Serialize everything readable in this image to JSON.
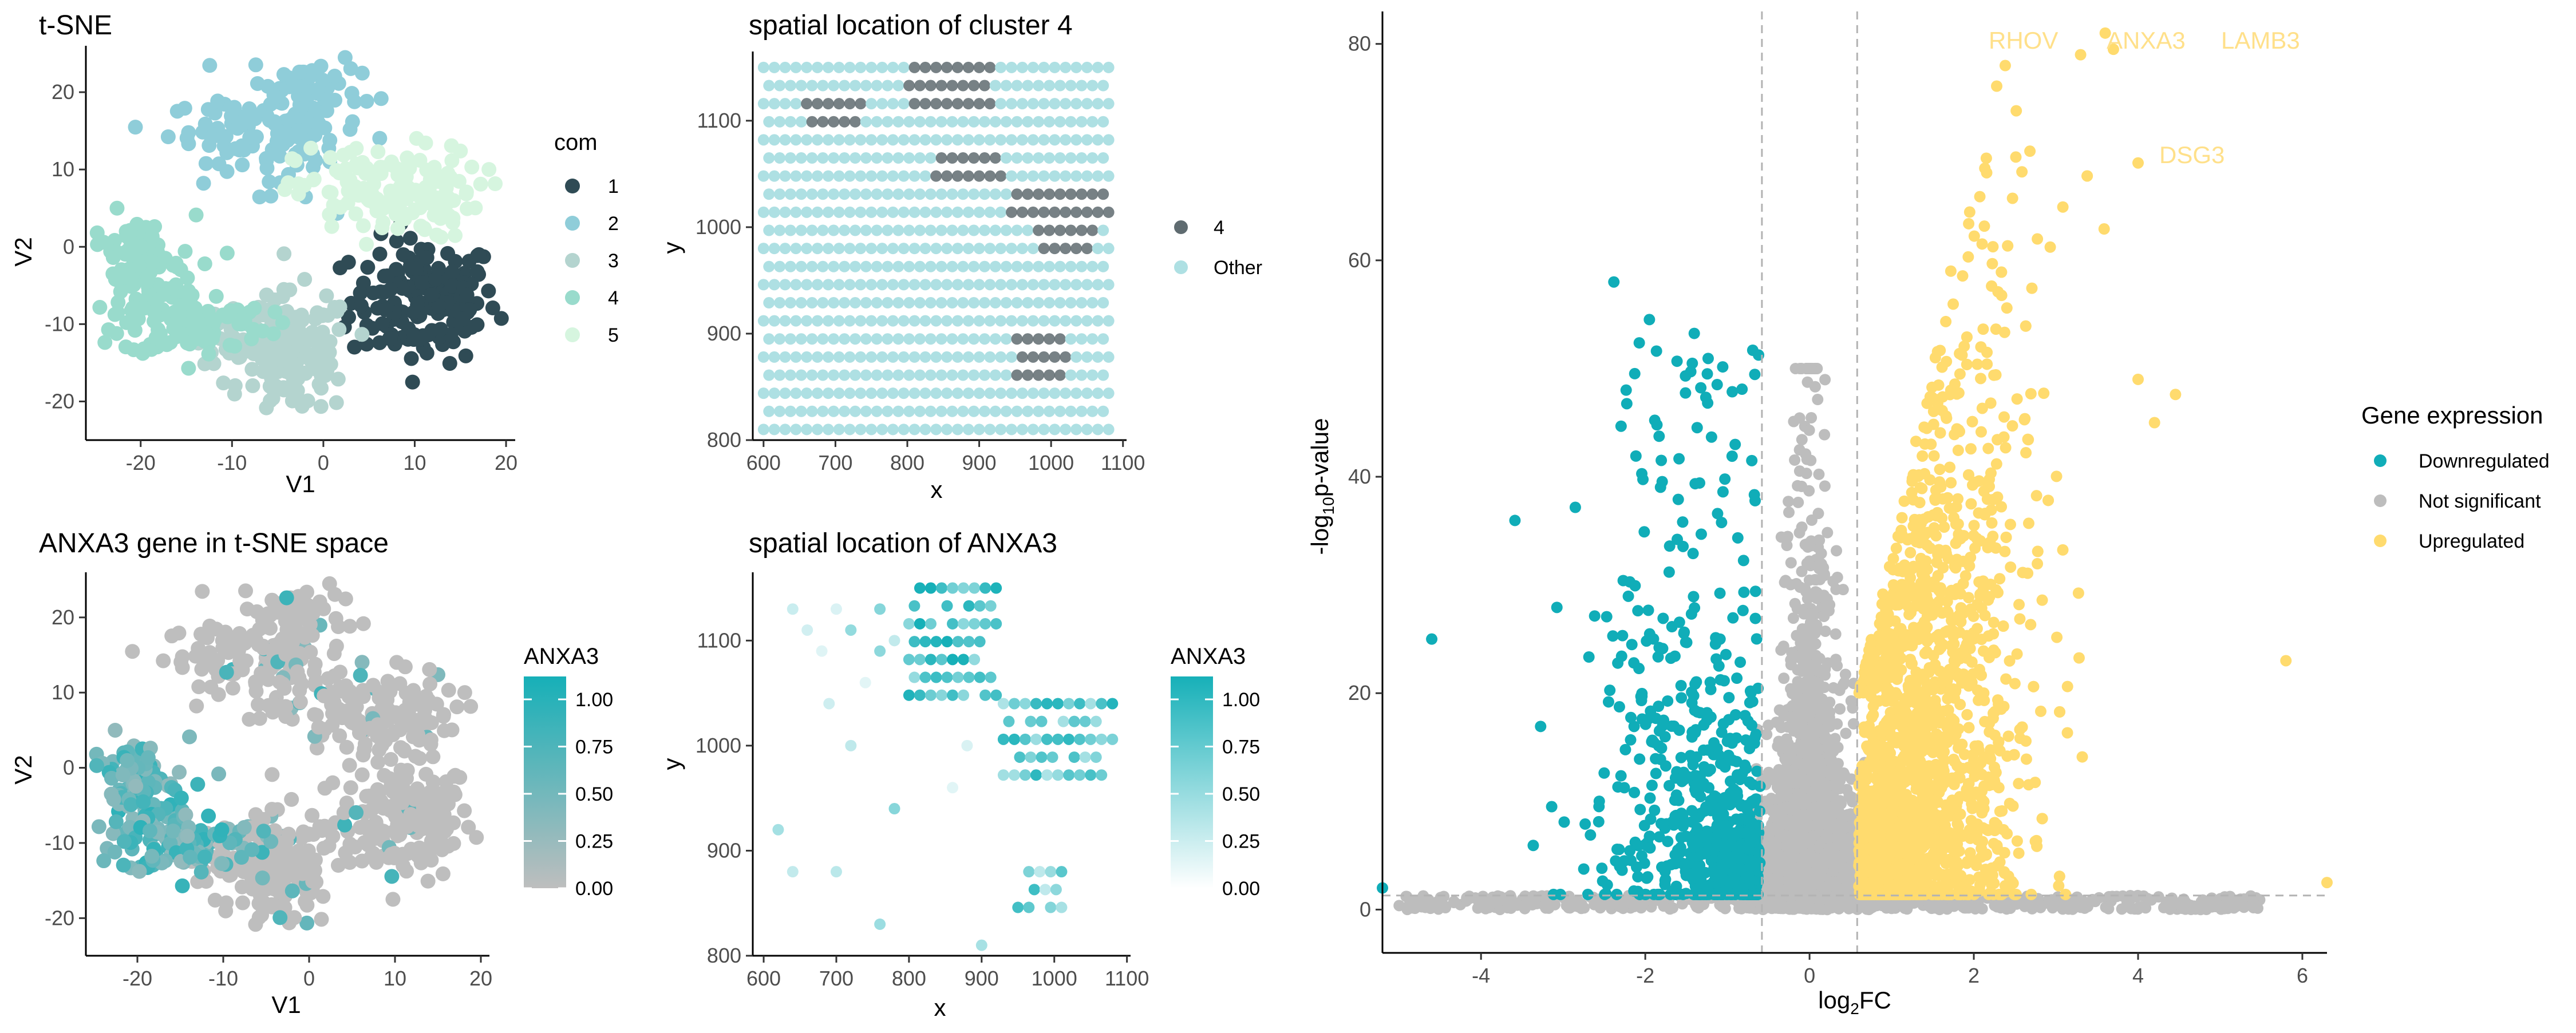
{
  "colors": {
    "com1": "#2f4b55",
    "com2": "#8fcdd9",
    "com3": "#b4d4cf",
    "com4": "#99dbcc",
    "com5": "#d6f5df",
    "cluster4": "#5f6b70",
    "other": "#aee0e3",
    "grad_low": "#bebebe",
    "grad_high": "#16b0b8",
    "grad_white": "#ffffff",
    "down": "#10adb8",
    "ns": "#bdbdbd",
    "up": "#ffdb6e",
    "label_up": "#ffe08a"
  },
  "panels": {
    "tsne": {
      "title": "t-SNE",
      "xlabel": "V1",
      "ylabel": "V2",
      "legend_title": "com",
      "legend": [
        {
          "label": "1"
        },
        {
          "label": "2"
        },
        {
          "label": "3"
        },
        {
          "label": "4"
        },
        {
          "label": "5"
        }
      ],
      "x_ticks": [
        "-20",
        "-10",
        "0",
        "10",
        "20"
      ],
      "y_ticks": [
        "20",
        "10",
        "0",
        "-10",
        "-20"
      ]
    },
    "cluster4": {
      "title": "spatial location of cluster 4",
      "xlabel": "x",
      "ylabel": "y",
      "legend": [
        {
          "label": "4"
        },
        {
          "label": "Other"
        }
      ],
      "x_ticks": [
        "600",
        "700",
        "800",
        "900",
        "1000",
        "1100"
      ],
      "y_ticks": [
        "1100",
        "1000",
        "900",
        "800"
      ]
    },
    "anxa3_tsne": {
      "title": "ANXA3 gene in t-SNE space",
      "xlabel": "V1",
      "ylabel": "V2",
      "legend_title": "ANXA3",
      "legend_ticks": [
        "1.00",
        "0.75",
        "0.50",
        "0.25",
        "0.00"
      ],
      "x_ticks": [
        "-20",
        "-10",
        "0",
        "10",
        "20"
      ],
      "y_ticks": [
        "20",
        "10",
        "0",
        "-10",
        "-20"
      ]
    },
    "anxa3_spatial": {
      "title": "spatial location of ANXA3",
      "xlabel": "x",
      "ylabel": "y",
      "legend_title": "ANXA3",
      "legend_ticks": [
        "1.00",
        "0.75",
        "0.50",
        "0.25",
        "0.00"
      ],
      "x_ticks": [
        "600",
        "700",
        "800",
        "900",
        "1000",
        "1100"
      ],
      "y_ticks": [
        "1100",
        "1000",
        "900",
        "800"
      ]
    },
    "volcano": {
      "xlabel_base": "log",
      "xlabel_sub": "2",
      "xlabel_tail": "FC",
      "ylabel_pre": "-log",
      "ylabel_sub": "10",
      "ylabel_tail": "p-value",
      "legend_title": "Gene expression",
      "legend": [
        {
          "label": "Downregulated"
        },
        {
          "label": "Not significant"
        },
        {
          "label": "Upregulated"
        }
      ],
      "x_ticks": [
        "-4",
        "-2",
        "0",
        "2",
        "4",
        "6"
      ],
      "y_ticks": [
        "80",
        "60",
        "40",
        "20",
        "0"
      ],
      "gene_labels": [
        "RHOV",
        "ANXA3",
        "LAMB3",
        "DSG3"
      ]
    }
  },
  "chart_data": [
    {
      "type": "scatter",
      "title": "t-SNE",
      "xlabel": "V1",
      "ylabel": "V2",
      "xlim": [
        -26,
        21
      ],
      "ylim": [
        -25,
        26
      ],
      "legend_title": "com",
      "series": [
        {
          "name": "1",
          "clusters": [
            [
              11,
              -7,
              4,
              4,
              160
            ]
          ]
        },
        {
          "name": "2",
          "clusters": [
            [
              -2,
              20,
              3,
              3,
              80
            ],
            [
              -9,
              15,
              4,
              2,
              60
            ],
            [
              -3,
              12,
              2,
              3,
              40
            ]
          ]
        },
        {
          "name": "3",
          "clusters": [
            [
              -3,
              -14,
              3,
              4,
              140
            ],
            [
              -8,
              -11,
              3,
              2,
              50
            ]
          ]
        },
        {
          "name": "4",
          "clusters": [
            [
              -20,
              -4,
              3,
              4,
              110
            ],
            [
              -14,
              -10,
              4,
              2,
              90
            ]
          ]
        },
        {
          "name": "5",
          "clusters": [
            [
              7,
              7,
              5,
              3,
              150
            ]
          ]
        }
      ]
    },
    {
      "type": "scatter",
      "title": "spatial location of cluster 4",
      "xlabel": "x",
      "ylabel": "y",
      "xlim": [
        585,
        1105
      ],
      "ylim": [
        800,
        1165
      ],
      "grid": {
        "x": [
          600,
          1080
        ],
        "y": [
          810,
          1150
        ],
        "dx": 15,
        "dy": 17
      },
      "series": [
        {
          "name": "4",
          "regions": [
            [
              800,
              920,
              1150,
              1100
            ],
            [
              660,
              740,
              1120,
              1085
            ],
            [
              840,
              930,
              1070,
              1040
            ],
            [
              940,
              1080,
              1040,
              1000
            ],
            [
              980,
              1060,
              1000,
              970
            ],
            [
              950,
              1020,
              900,
              850
            ]
          ]
        },
        {
          "name": "Other"
        }
      ]
    },
    {
      "type": "scatter",
      "title": "ANXA3 gene in t-SNE space",
      "xlabel": "V1",
      "ylabel": "V2",
      "xlim": [
        -26,
        21
      ],
      "ylim": [
        -25,
        26
      ],
      "color_scale": {
        "name": "ANXA3",
        "min": 0,
        "max": 1.0
      }
    },
    {
      "type": "scatter",
      "title": "spatial location of ANXA3",
      "xlabel": "x",
      "ylabel": "y",
      "xlim": [
        585,
        1105
      ],
      "ylim": [
        800,
        1165
      ],
      "color_scale": {
        "name": "ANXA3",
        "min": 0,
        "max": 1.0
      },
      "dense_regions": [
        [
          800,
          920,
          1150,
          1040,
          0.8
        ],
        [
          930,
          1080,
          1040,
          970,
          0.7
        ],
        [
          950,
          1020,
          880,
          840,
          0.6
        ]
      ],
      "sparse_points": [
        [
          640,
          1130
        ],
        [
          660,
          1110
        ],
        [
          680,
          1090
        ],
        [
          700,
          1130
        ],
        [
          720,
          1110
        ],
        [
          740,
          1060
        ],
        [
          760,
          1090
        ],
        [
          760,
          1130
        ],
        [
          780,
          1100
        ],
        [
          690,
          1040
        ],
        [
          720,
          1000
        ],
        [
          620,
          920
        ],
        [
          640,
          880
        ],
        [
          700,
          880
        ],
        [
          780,
          940
        ],
        [
          860,
          960
        ],
        [
          880,
          1000
        ],
        [
          900,
          810
        ],
        [
          760,
          830
        ]
      ]
    },
    {
      "type": "scatter",
      "title": "",
      "xlabel": "log2FC",
      "ylabel": "-log10p-value",
      "xlim": [
        -5.2,
        6.3
      ],
      "ylim": [
        -4,
        83
      ],
      "thresholds": {
        "x": [
          -0.58,
          0.58
        ],
        "y": 1.3
      },
      "legend_title": "Gene expression",
      "series": [
        {
          "name": "Downregulated"
        },
        {
          "name": "Not significant"
        },
        {
          "name": "Upregulated"
        }
      ],
      "labeled_points": [
        {
          "gene": "RHOV",
          "x": 3.3,
          "y": 79
        },
        {
          "gene": "ANXA3",
          "x": 3.6,
          "y": 81
        },
        {
          "gene": "LAMB3",
          "x": 3.7,
          "y": 79.5
        },
        {
          "gene": "DSG3",
          "x": 4.0,
          "y": 69
        }
      ],
      "outliers": [
        [
          5.8,
          23
        ],
        [
          6.3,
          2.5
        ],
        [
          4.2,
          45
        ],
        [
          4.0,
          49
        ],
        [
          -4.6,
          25
        ],
        [
          -5.2,
          2
        ]
      ]
    }
  ]
}
